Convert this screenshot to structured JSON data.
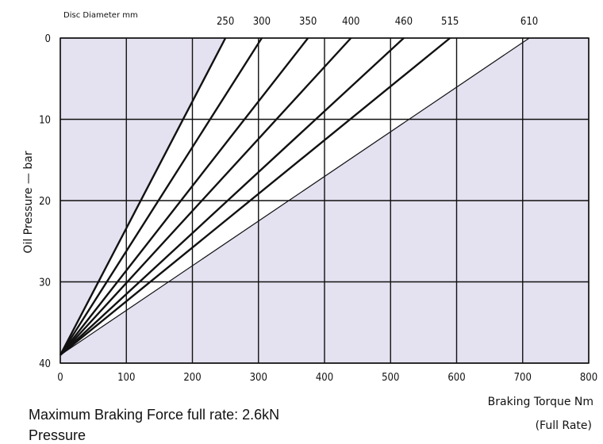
{
  "chart_data": {
    "type": "line",
    "header_label": "Disc Diameter mm",
    "xlabel": "Braking Torque Nm",
    "xlabel_sub": "(Full Rate)",
    "ylabel": "Oil Pressure — bar",
    "xlim": [
      0,
      800
    ],
    "ylim": [
      0,
      40
    ],
    "y_inverted": true,
    "x_ticks": [
      "0",
      "100",
      "200",
      "300",
      "400",
      "500",
      "600",
      "700",
      "800"
    ],
    "y_ticks": [
      "0",
      "10",
      "20",
      "30",
      "40"
    ],
    "grid": true,
    "plot_color": "#e4e1f0",
    "wedge_color": "#ffffff",
    "series": [
      {
        "name": "250",
        "x": [
          0,
          250
        ],
        "y": [
          39,
          0
        ]
      },
      {
        "name": "300",
        "x": [
          0,
          305
        ],
        "y": [
          39,
          0
        ]
      },
      {
        "name": "350",
        "x": [
          0,
          375
        ],
        "y": [
          39,
          0
        ]
      },
      {
        "name": "400",
        "x": [
          0,
          440
        ],
        "y": [
          39,
          0
        ]
      },
      {
        "name": "460",
        "x": [
          0,
          520
        ],
        "y": [
          39,
          0
        ]
      },
      {
        "name": "515",
        "x": [
          0,
          590
        ],
        "y": [
          39,
          0
        ]
      },
      {
        "name": "610",
        "x": [
          0,
          710
        ],
        "y": [
          39,
          0
        ]
      }
    ]
  },
  "notes": {
    "line1": "Maximum Braking Force full rate: 2.6kN",
    "line2": "Pressure"
  }
}
